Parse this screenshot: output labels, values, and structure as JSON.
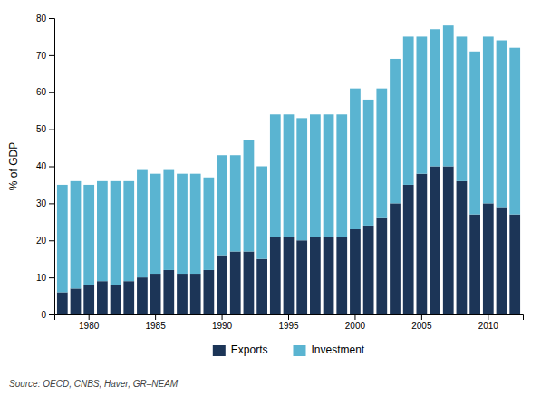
{
  "chart_data": {
    "type": "bar",
    "stacked": true,
    "categories": [
      null,
      null,
      "1980",
      null,
      null,
      null,
      null,
      "1985",
      null,
      null,
      null,
      null,
      "1990",
      null,
      null,
      null,
      null,
      "1995",
      null,
      null,
      null,
      null,
      "2000",
      null,
      null,
      null,
      null,
      "2005",
      null,
      null,
      null,
      null,
      "2010",
      null,
      null
    ],
    "series": [
      {
        "name": "Exports",
        "color": "#1c3557",
        "values": [
          6,
          7,
          8,
          9,
          8,
          9,
          10,
          11,
          12,
          11,
          11,
          12,
          16,
          17,
          17,
          15,
          21,
          21,
          20,
          21,
          21,
          21,
          23,
          24,
          26,
          30,
          35,
          38,
          40,
          40,
          36,
          27,
          30,
          29,
          27
        ]
      },
      {
        "name": "Investment",
        "color": "#5ab4d1",
        "values": [
          29,
          29,
          27,
          27,
          28,
          27,
          29,
          27,
          27,
          27,
          27,
          25,
          27,
          26,
          30,
          25,
          33,
          33,
          33,
          33,
          33,
          33,
          38,
          34,
          35,
          39,
          40,
          37,
          37,
          38,
          39,
          44,
          45,
          45,
          45
        ]
      }
    ],
    "y_label": "% of GDP",
    "ylim": [
      0,
      80
    ],
    "yticks": [
      0,
      10,
      20,
      30,
      40,
      50,
      60,
      70,
      80
    ],
    "grid": false,
    "legend": "bottom",
    "annotations": [
      "Source: OECD, CNBS, Haver, GR–NEAM"
    ]
  }
}
